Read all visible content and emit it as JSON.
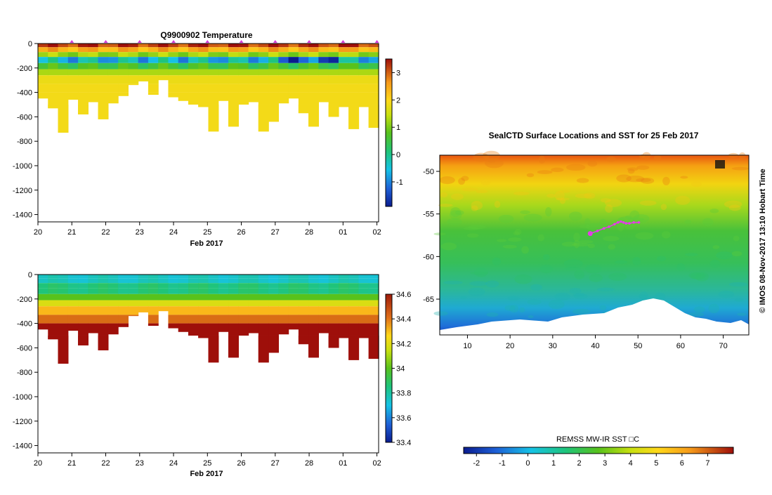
{
  "chart_data": [
    {
      "type": "heatmap",
      "title": "Q9900902  Temperature",
      "xlabel": "Feb 2017",
      "x_tick_labels": [
        "20",
        "21",
        "22",
        "23",
        "24",
        "25",
        "26",
        "27",
        "28",
        "01",
        "02"
      ],
      "x_tick_days": [
        0,
        1,
        2,
        3,
        4,
        5,
        6,
        7,
        8,
        9,
        10
      ],
      "xlim_days": [
        0,
        10.05
      ],
      "ylim": [
        -1460,
        0
      ],
      "y_ticks": [
        0,
        -200,
        -400,
        -600,
        -800,
        -1000,
        -1200,
        -1400
      ],
      "colorbar": {
        "ticks": [
          3,
          2,
          1,
          0,
          -1
        ],
        "range": [
          -1.9,
          3.5
        ]
      },
      "profile_max_depth": [
        450,
        530,
        730,
        460,
        580,
        480,
        620,
        490,
        430,
        340,
        310,
        420,
        300,
        440,
        470,
        500,
        520,
        720,
        470,
        680,
        500,
        480,
        720,
        640,
        490,
        450,
        570,
        680,
        480,
        600,
        520,
        700,
        520,
        690
      ],
      "profile_deep_value": 2.0,
      "surface_marks_days": [
        1,
        2,
        3,
        4,
        5,
        6,
        7,
        8,
        9,
        10
      ]
    },
    {
      "type": "heatmap",
      "title": "",
      "xlabel": "Feb 2017",
      "x_tick_labels": [
        "20",
        "21",
        "22",
        "23",
        "24",
        "25",
        "26",
        "27",
        "28",
        "01",
        "02"
      ],
      "x_tick_days": [
        0,
        1,
        2,
        3,
        4,
        5,
        6,
        7,
        8,
        9,
        10
      ],
      "xlim_days": [
        0,
        10.05
      ],
      "ylim": [
        -1460,
        0
      ],
      "y_ticks": [
        0,
        -200,
        -400,
        -600,
        -800,
        -1000,
        -1200,
        -1400
      ],
      "colorbar": {
        "ticks": [
          "34.6",
          "34.4",
          "34.2",
          "34",
          "33.8",
          "33.6",
          "33.4"
        ],
        "range": [
          33.4,
          34.6
        ]
      },
      "profile_deep_value": 34.55
    },
    {
      "type": "map",
      "title": "SealCTD Surface Locations and SST for 25 Feb 2017",
      "x_tick_labels": [
        "10",
        "20",
        "30",
        "40",
        "50",
        "60",
        "70"
      ],
      "x_ticks": [
        10,
        20,
        30,
        40,
        50,
        60,
        70
      ],
      "xlim": [
        3.5,
        76
      ],
      "y_tick_labels": [
        "-50",
        "-55",
        "-60",
        "-65"
      ],
      "y_ticks": [
        -50,
        -55,
        -60,
        -65
      ],
      "ylim": [
        -69.2,
        -48.1
      ],
      "colorbar_label": "REMSS MW-IR SST □C",
      "colorbar_ticks": [
        "-2",
        "-1",
        "0",
        "1",
        "2",
        "3",
        "4",
        "5",
        "6",
        "7"
      ],
      "colorbar_range": [
        -2.5,
        8
      ],
      "track_lon": [
        38.8,
        40.5,
        42.0,
        43.2,
        44.5,
        45.3,
        46.0,
        46.6,
        47.2,
        48.0,
        49.0,
        50.2
      ],
      "track_lat": [
        -57.3,
        -57.0,
        -56.7,
        -56.5,
        -56.2,
        -56.0,
        -55.9,
        -56.0,
        -56.1,
        -56.1,
        -56.0,
        -56.0
      ]
    }
  ],
  "credit": "© IMOS 08-Nov-2017 13:10 Hobart Time"
}
